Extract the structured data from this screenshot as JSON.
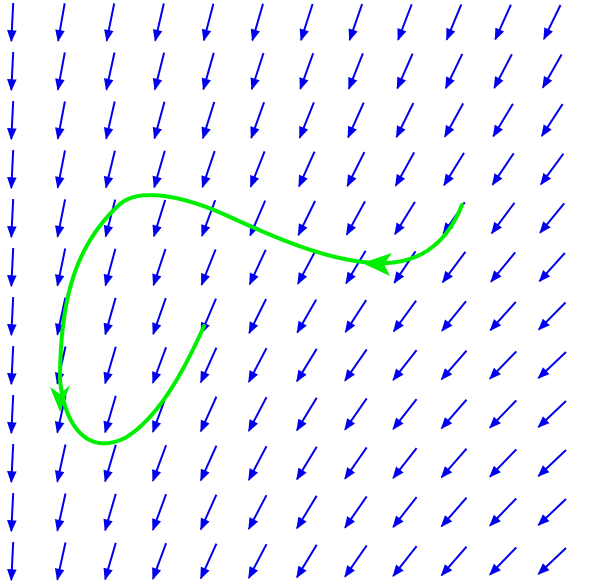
{
  "diagram": {
    "type": "vector-field-with-trajectory",
    "background_color": "#ffffff",
    "arrow_color": "#0000ee",
    "trajectory_color": "#00ee00",
    "grid": {
      "columns": 12,
      "rows": 12
    },
    "trajectory": {
      "start_marker": "none",
      "direction_markers": [
        "arrowhead-left",
        "arrowhead-down"
      ]
    }
  }
}
